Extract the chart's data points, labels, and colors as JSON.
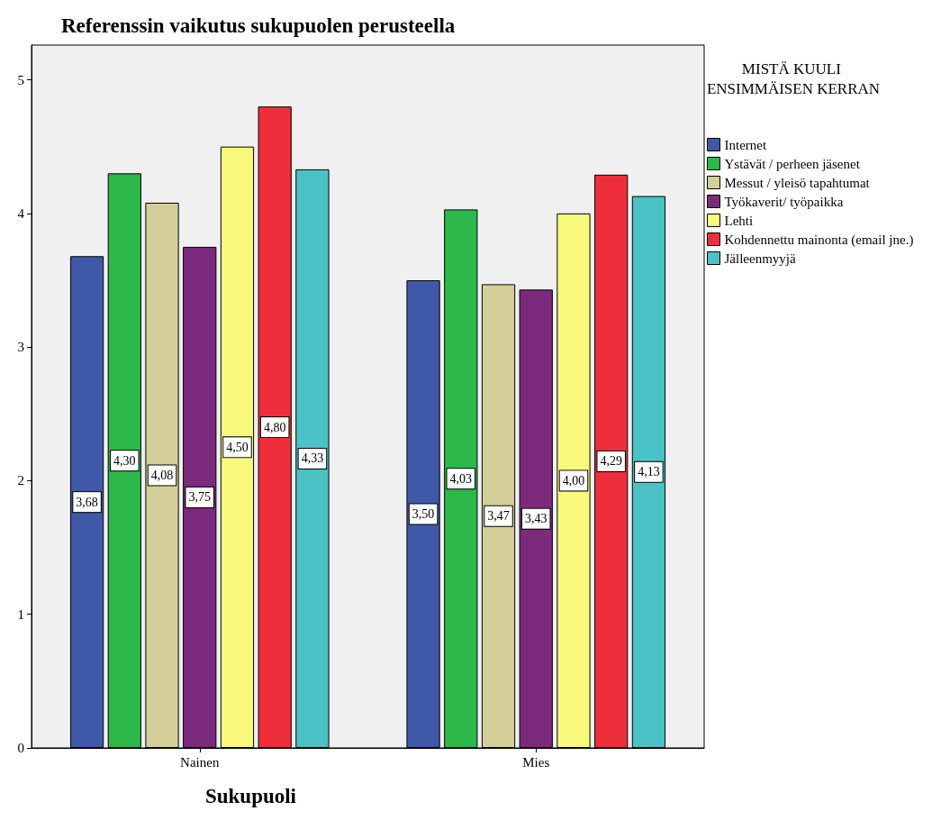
{
  "chart_data": {
    "type": "bar",
    "title": "Referenssin vaikutus sukupuolen perusteella",
    "xlabel": "Sukupuoli",
    "legend_title": "MISTÄ KUULI ENSIMMÄISEN KERRAN",
    "categories": [
      "Nainen",
      "Mies"
    ],
    "series": [
      {
        "name": "Internet",
        "color": "#3f58a8",
        "values": [
          3.68,
          3.5
        ],
        "value_labels": [
          "3,68",
          "3,50"
        ]
      },
      {
        "name": "Ystävät / perheen jäsenet",
        "color": "#2db84a",
        "values": [
          4.3,
          4.03
        ],
        "value_labels": [
          "4,30",
          "4,03"
        ]
      },
      {
        "name": "Messut / yleisö tapahtumat",
        "color": "#d4cf98",
        "values": [
          4.08,
          3.47
        ],
        "value_labels": [
          "4,08",
          "3,47"
        ]
      },
      {
        "name": "Työkaverit/ työpaikka",
        "color": "#7b2a7c",
        "values": [
          3.75,
          3.43
        ],
        "value_labels": [
          "3,75",
          "3,43"
        ]
      },
      {
        "name": "Lehti",
        "color": "#f8f87a",
        "values": [
          4.5,
          4.0
        ],
        "value_labels": [
          "4,50",
          "4,00"
        ]
      },
      {
        "name": "Kohdennettu mainonta (email jne.)",
        "color": "#ee2e3b",
        "values": [
          4.8,
          4.29
        ],
        "value_labels": [
          "4,80",
          "4,29"
        ]
      },
      {
        "name": "Jälleenmyyjä",
        "color": "#4bc2c5",
        "values": [
          4.33,
          4.13
        ],
        "value_labels": [
          "4,33",
          "4,13"
        ]
      }
    ],
    "ylim": [
      0,
      5.26
    ],
    "yticks": [
      0,
      1,
      2,
      3,
      4,
      5
    ],
    "grid": false,
    "legend": "right"
  }
}
